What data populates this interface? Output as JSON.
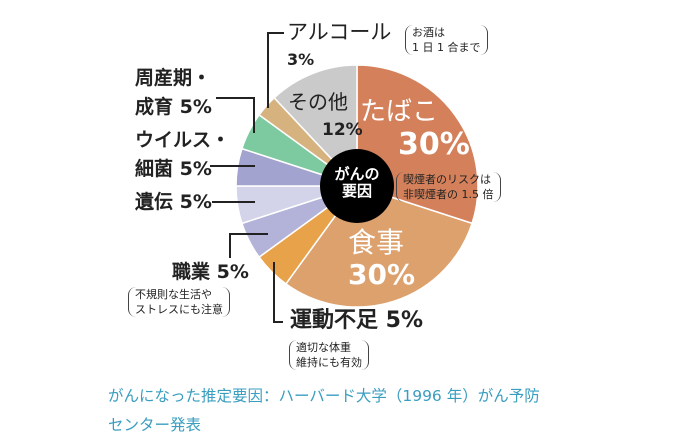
{
  "chart_data": {
    "type": "pie",
    "title": "がんの要因",
    "center_label": "がんの要因",
    "slices": [
      {
        "label": "たばこ",
        "value": 30,
        "color": "#d4815b",
        "note": "喫煙者のリスクは非喫煙者の 1.5 倍"
      },
      {
        "label": "食事",
        "value": 30,
        "color": "#dca16d"
      },
      {
        "label": "運動不足",
        "value": 5,
        "color": "#e8a24a",
        "note": "適切な体重維持にも有効"
      },
      {
        "label": "職業",
        "value": 5,
        "color": "#b3b3d9",
        "note": "不規則な生活やストレスにも注意"
      },
      {
        "label": "遺伝",
        "value": 5,
        "color": "#d3d3ea"
      },
      {
        "label": "ウイルス・細菌",
        "value": 5,
        "color": "#a3a3cf"
      },
      {
        "label": "周産期・成育",
        "value": 5,
        "color": "#7dc9a0"
      },
      {
        "label": "アルコール",
        "value": 3,
        "color": "#d6b27e",
        "note": "お酒は1日1合まで"
      },
      {
        "label": "その他",
        "value": 12,
        "color": "#cacaca"
      }
    ]
  },
  "labels": {
    "tobacco": "たばこ",
    "tobacco_pct": "30%",
    "tobacco_note1": "喫煙者のリスクは",
    "tobacco_note2": "非喫煙者の 1.5 倍",
    "diet": "食事",
    "diet_pct": "30%",
    "other": "その他",
    "other_pct": "12%",
    "alcohol": "アルコール",
    "alcohol_pct": "3%",
    "alcohol_note1": "お酒は",
    "alcohol_note2": "1 日 1 合まで",
    "peri1": "周産期・",
    "peri2": "成育 5%",
    "virus1": "ウイルス・",
    "virus2": "細菌 5%",
    "heredity": "遺伝 5%",
    "job": "職業 5%",
    "job_note1": "不規則な生活や",
    "job_note2": "ストレスにも注意",
    "exercise": "運動不足 5%",
    "ex_note1": "適切な体重",
    "ex_note2": "維持にも有効",
    "center1": "がんの",
    "center2": "要因"
  },
  "caption": "がんになった推定要因：ハーバード大学（1996 年）がん予防センター発表"
}
